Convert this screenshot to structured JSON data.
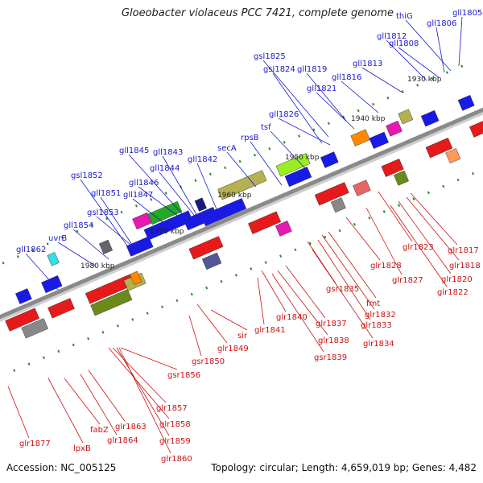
{
  "title": "Gloeobacter violaceus PCC 7421, complete genome",
  "accession_text": "Accession: NC_005125",
  "summary_text": "Topology: circular; Length: 4,659,019 bp; Genes: 4,482",
  "colors": {
    "forward_label": "#1a1acc",
    "reverse_label": "#cc1111",
    "backbone": "#8a8a8a",
    "tick": "#2a8a2a"
  },
  "scale_ticks": [
    "1930 kbp",
    "1940 kbp",
    "1950 kbp",
    "1960 kbp",
    "1970 kbp",
    "1980 kbp"
  ],
  "forward_genes": [
    "gll1805",
    "thiG",
    "gll1806",
    "gll1812",
    "gll1808",
    "gsl1825",
    "gll1813",
    "gsl1824",
    "gll1819",
    "gll1816",
    "gll1821",
    "gll1826",
    "tsf",
    "rpsB",
    "secA",
    "gll1845",
    "gll1843",
    "gll1844",
    "gll1842",
    "gsl1852",
    "gll1846",
    "gll1851",
    "gll1847",
    "gsl1853",
    "gll1854",
    "uvrB",
    "gll1862"
  ],
  "reverse_genes": [
    "glr1823",
    "glr1817",
    "glr1828",
    "glr1818",
    "glr1827",
    "glr1820",
    "glr1822",
    "gsr1835",
    "fmt",
    "glr1832",
    "glr1840",
    "glr1833",
    "glr1837",
    "glr1841",
    "glr1834",
    "glr1838",
    "sir",
    "glr1849",
    "gsr1839",
    "gsr1850",
    "gsr1856",
    "glr1857",
    "glr1858",
    "glr1863",
    "fabZ",
    "glr1864",
    "glr1859",
    "glr1877",
    "lpxB",
    "glr1860"
  ]
}
